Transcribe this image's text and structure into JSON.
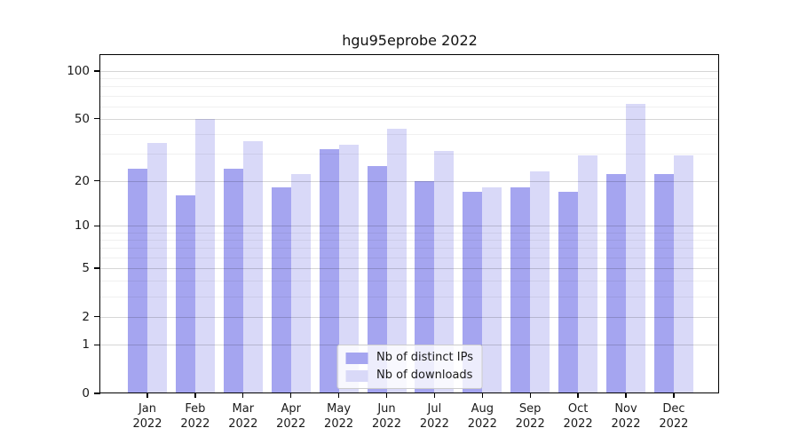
{
  "title": "hgu95eprobe 2022",
  "chart_data": {
    "type": "bar",
    "title": "hgu95eprobe 2022",
    "categories": [
      "Jan 2022",
      "Feb 2022",
      "Mar 2022",
      "Apr 2022",
      "May 2022",
      "Jun 2022",
      "Jul 2022",
      "Aug 2022",
      "Sep 2022",
      "Oct 2022",
      "Nov 2022",
      "Dec 2022"
    ],
    "series": [
      {
        "name": "Nb of distinct IPs",
        "color": "#a5a5f0",
        "values": [
          24,
          16,
          24,
          18,
          32,
          25,
          20,
          17,
          18,
          17,
          22,
          22
        ]
      },
      {
        "name": "Nb of downloads",
        "color": "#d9d9f8",
        "values": [
          35,
          50,
          36,
          22,
          34,
          43,
          31,
          18,
          23,
          29,
          62,
          29
        ]
      }
    ],
    "xlabel": "",
    "ylabel": "",
    "yscale": "log1p",
    "ylim": [
      0,
      126
    ],
    "yticks": [
      0,
      1,
      2,
      5,
      10,
      20,
      50,
      100
    ],
    "minor_yticks": [
      3,
      4,
      6,
      7,
      8,
      9,
      30,
      40,
      60,
      70,
      80,
      90
    ],
    "grid": true,
    "legend_position": "lower center",
    "axis_color": "#000000",
    "background_color": "#ffffff",
    "grid_major_color": "#d6d6d6",
    "grid_minor_color": "#efefef"
  }
}
